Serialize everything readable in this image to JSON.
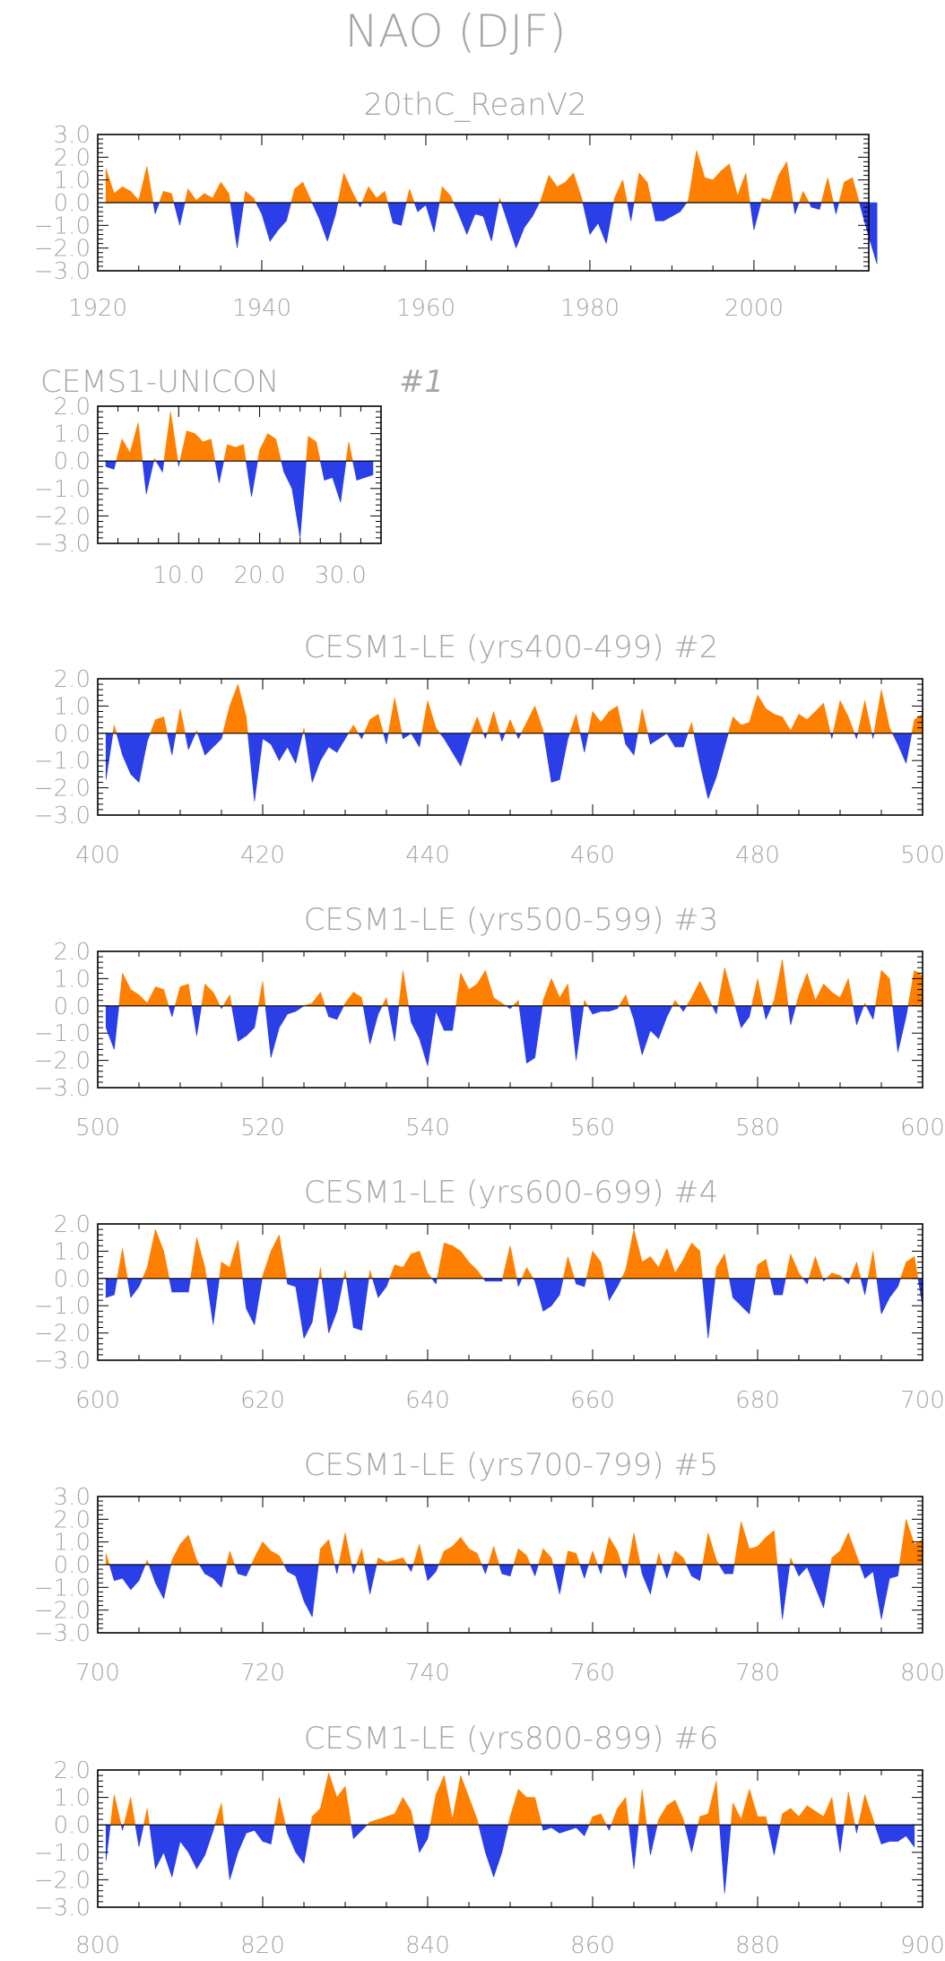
{
  "title": "NAO (DJF)",
  "colors": {
    "positive": "#ff8000",
    "negative": "#2b3fe8",
    "text": "#a6a6a6",
    "axis": "#000000"
  },
  "chart_data": [
    {
      "type": "area",
      "title": "20thC_ReanV2",
      "label": "",
      "x_start": 1920,
      "x_range": [
        1920,
        2014
      ],
      "ylim": [
        -3.0,
        3.0
      ],
      "yticks": [
        3.0,
        2.0,
        1.0,
        0.0,
        -1.0,
        -2.0,
        -3.0
      ],
      "xticks": [
        1920,
        1940,
        1960,
        1980,
        2000
      ],
      "xtick_labels": [
        "1920",
        "1940",
        "1960",
        "1980",
        "2000"
      ],
      "values": [
        1.5,
        0.4,
        0.7,
        0.5,
        0.1,
        1.6,
        -0.5,
        0.5,
        0.4,
        -1.0,
        0.6,
        0.1,
        0.4,
        0.2,
        0.9,
        0.4,
        -2.0,
        0.5,
        0.2,
        -0.5,
        -1.7,
        -1.2,
        -0.8,
        0.6,
        0.9,
        0.1,
        -0.7,
        -1.7,
        -0.5,
        1.3,
        0.5,
        -0.2,
        0.7,
        0.2,
        0.5,
        -0.9,
        -1.0,
        0.6,
        -0.4,
        -0.1,
        -1.3,
        0.7,
        0.3,
        -0.5,
        -1.4,
        -0.5,
        -0.6,
        -1.7,
        0.2,
        -0.9,
        -2.0,
        -1.1,
        -0.6,
        0.1,
        1.2,
        0.7,
        0.9,
        1.3,
        0.2,
        -1.4,
        -0.9,
        -1.8,
        0.2,
        1.0,
        -0.8,
        1.3,
        0.9,
        -0.8,
        -0.8,
        -0.6,
        -0.4,
        0.1,
        2.3,
        1.1,
        1.0,
        1.4,
        1.7,
        0.3,
        1.3,
        -1.2,
        0.2,
        0.1,
        1.2,
        1.8,
        -0.5,
        0.5,
        -0.2,
        -0.3,
        1.1,
        -0.5,
        0.9,
        1.1,
        -0.2,
        -1.5,
        -2.7
      ]
    },
    {
      "type": "area",
      "title": "CEMS1-UNICON",
      "label": "#1",
      "x_start": 0,
      "x_range": [
        0,
        35
      ],
      "ylim": [
        -3.0,
        2.0
      ],
      "yticks": [
        2.0,
        1.0,
        0.0,
        -1.0,
        -2.0,
        -3.0
      ],
      "xticks": [
        10,
        20,
        30
      ],
      "xtick_labels": [
        "10.0",
        "20.0",
        "30.0"
      ],
      "values": [
        -0.2,
        -0.3,
        0.8,
        0.3,
        1.4,
        -1.2,
        0.1,
        -0.4,
        1.8,
        -0.2,
        1.1,
        1.0,
        0.7,
        0.8,
        -0.8,
        0.6,
        0.5,
        0.6,
        -1.3,
        0.4,
        1.0,
        0.8,
        -0.4,
        -1.0,
        -2.8,
        0.9,
        0.7,
        -0.7,
        -0.6,
        -1.5,
        0.7,
        -0.7,
        -0.6,
        -0.5
      ]
    },
    {
      "type": "area",
      "title": "CESM1-LE (yrs400-499) #2",
      "label": "",
      "x_start": 400,
      "x_range": [
        400,
        500
      ],
      "ylim": [
        -3.0,
        2.0
      ],
      "yticks": [
        2.0,
        1.0,
        0.0,
        -1.0,
        -2.0,
        -3.0
      ],
      "xticks": [
        400,
        420,
        440,
        460,
        480,
        500
      ],
      "xtick_labels": [
        "400",
        "420",
        "440",
        "460",
        "480",
        "500"
      ],
      "values": [
        -1.7,
        0.3,
        -0.8,
        -1.5,
        -1.8,
        -0.3,
        0.5,
        0.6,
        -0.8,
        0.9,
        -0.6,
        0.1,
        -0.8,
        -0.5,
        -0.2,
        1.0,
        1.8,
        0.6,
        -2.5,
        -0.2,
        -0.4,
        -1.0,
        -0.5,
        -1.1,
        0.2,
        -1.8,
        -1.0,
        -0.5,
        -0.7,
        -0.2,
        0.3,
        -0.2,
        0.5,
        0.7,
        -0.4,
        1.3,
        -0.2,
        0.0,
        -0.5,
        1.2,
        0.2,
        -0.2,
        -0.7,
        -1.2,
        -0.2,
        0.6,
        -0.2,
        0.8,
        -0.3,
        0.5,
        -0.2,
        0.4,
        1.0,
        0.1,
        -1.8,
        -1.7,
        -0.2,
        0.7,
        -0.7,
        0.8,
        0.4,
        0.8,
        1.0,
        -0.4,
        -0.8,
        0.9,
        -0.4,
        -0.2,
        0.0,
        -0.5,
        -0.5,
        0.4,
        -1.1,
        -2.4,
        -1.6,
        -0.5,
        0.6,
        0.3,
        0.4,
        1.4,
        0.9,
        0.7,
        0.6,
        0.1,
        0.7,
        0.5,
        0.8,
        1.1,
        -0.2,
        1.2,
        0.6,
        -0.2,
        1.2,
        -0.2,
        1.6,
        0.2,
        -0.4,
        -1.1,
        0.5,
        0.7
      ]
    },
    {
      "type": "area",
      "title": "CESM1-LE (yrs500-599) #3",
      "label": "",
      "x_start": 500,
      "x_range": [
        500,
        600
      ],
      "ylim": [
        -3.0,
        2.0
      ],
      "yticks": [
        2.0,
        1.0,
        0.0,
        -1.0,
        -2.0,
        -3.0
      ],
      "xticks": [
        500,
        520,
        540,
        560,
        580,
        600
      ],
      "xtick_labels": [
        "500",
        "520",
        "540",
        "560",
        "580",
        "600"
      ],
      "values": [
        -0.8,
        -1.6,
        1.2,
        0.6,
        0.4,
        0.1,
        0.7,
        0.6,
        -0.4,
        0.7,
        0.8,
        -1.1,
        0.8,
        0.5,
        -0.1,
        0.4,
        -1.3,
        -1.1,
        -0.8,
        0.9,
        -1.9,
        -0.8,
        -0.3,
        -0.2,
        0.0,
        0.1,
        0.5,
        -0.4,
        -0.5,
        0.1,
        0.5,
        0.3,
        -1.4,
        -0.3,
        0.3,
        -1.3,
        1.3,
        -0.6,
        -1.2,
        -2.2,
        -0.2,
        -0.9,
        -0.9,
        1.2,
        0.6,
        0.8,
        1.3,
        0.3,
        0.1,
        -0.1,
        0.2,
        -2.1,
        -1.9,
        0.2,
        1.0,
        0.3,
        0.8,
        -2.0,
        0.2,
        -0.3,
        -0.2,
        -0.2,
        -0.1,
        0.4,
        -0.5,
        -1.8,
        -0.9,
        -1.2,
        -0.4,
        0.2,
        -0.2,
        0.3,
        0.9,
        0.3,
        -0.3,
        1.4,
        0.3,
        -0.8,
        -0.4,
        1.0,
        -0.5,
        0.2,
        1.7,
        -0.7,
        0.4,
        1.2,
        0.2,
        0.8,
        0.5,
        0.3,
        1.0,
        -0.7,
        0.1,
        -0.5,
        1.3,
        1.0,
        -1.7,
        -0.4,
        1.3,
        1.1
      ]
    },
    {
      "type": "area",
      "title": "CESM1-LE (yrs600-699) #4",
      "label": "",
      "x_start": 600,
      "x_range": [
        600,
        700
      ],
      "ylim": [
        -3.0,
        2.0
      ],
      "yticks": [
        2.0,
        1.0,
        0.0,
        -1.0,
        -2.0,
        -3.0
      ],
      "xticks": [
        600,
        620,
        640,
        660,
        680,
        700
      ],
      "xtick_labels": [
        "600",
        "620",
        "640",
        "660",
        "680",
        "700"
      ],
      "values": [
        -0.7,
        -0.6,
        1.1,
        -0.7,
        -0.3,
        0.4,
        1.8,
        1.0,
        -0.5,
        -0.5,
        -0.5,
        1.5,
        0.4,
        -1.7,
        0.6,
        0.4,
        1.4,
        -1.1,
        -1.7,
        0.1,
        1.0,
        1.6,
        -0.2,
        -0.3,
        -2.2,
        -1.6,
        0.4,
        -2.0,
        -1.2,
        0.3,
        -1.8,
        -1.9,
        0.3,
        -0.7,
        -0.3,
        0.5,
        0.4,
        0.9,
        1.0,
        0.2,
        -0.2,
        1.3,
        1.2,
        1.0,
        0.6,
        0.3,
        -0.1,
        -0.1,
        -0.1,
        1.2,
        -0.3,
        0.4,
        -0.1,
        -1.2,
        -1.0,
        -0.6,
        0.8,
        -0.2,
        -0.3,
        1.0,
        0.6,
        -0.8,
        -0.3,
        0.3,
        1.8,
        0.6,
        0.8,
        0.4,
        1.1,
        0.2,
        0.7,
        1.3,
        1.0,
        -2.2,
        0.4,
        0.9,
        -0.7,
        -1.0,
        -1.3,
        0.5,
        0.7,
        -0.6,
        -0.6,
        0.9,
        0.2,
        -0.2,
        0.8,
        -0.1,
        0.2,
        0.1,
        -0.2,
        0.6,
        -0.6,
        1.0,
        -1.3,
        -0.7,
        -0.3,
        0.6,
        0.8,
        -1.0
      ]
    },
    {
      "type": "area",
      "title": "CESM1-LE (yrs700-799) #5",
      "label": "",
      "x_start": 700,
      "x_range": [
        700,
        800
      ],
      "ylim": [
        -3.0,
        3.0
      ],
      "yticks": [
        3.0,
        2.0,
        1.0,
        0.0,
        -1.0,
        -2.0,
        -3.0
      ],
      "xticks": [
        700,
        720,
        740,
        760,
        780,
        800
      ],
      "xtick_labels": [
        "700",
        "720",
        "740",
        "760",
        "780",
        "800"
      ],
      "values": [
        0.5,
        -0.7,
        -0.6,
        -1.1,
        -0.7,
        0.2,
        -0.8,
        -1.5,
        0.2,
        0.9,
        1.3,
        0.2,
        -0.4,
        -0.6,
        -1.0,
        0.6,
        -0.4,
        -0.5,
        0.3,
        1.0,
        0.6,
        0.4,
        -0.3,
        -0.5,
        -1.6,
        -2.3,
        0.7,
        1.1,
        -0.4,
        1.4,
        -0.4,
        0.7,
        -1.3,
        0.3,
        0.1,
        0.2,
        0.3,
        -0.3,
        0.9,
        -0.7,
        -0.3,
        0.6,
        0.8,
        1.2,
        0.7,
        0.5,
        -0.4,
        0.8,
        -0.4,
        -0.5,
        0.7,
        0.4,
        -0.5,
        0.7,
        0.3,
        -1.3,
        0.6,
        0.5,
        -0.6,
        0.6,
        -0.4,
        1.2,
        0.6,
        -0.6,
        1.4,
        -0.4,
        -1.3,
        0.5,
        -0.6,
        0.6,
        0.3,
        -0.5,
        -0.7,
        1.4,
        0.2,
        -0.4,
        -0.4,
        1.9,
        0.7,
        0.8,
        1.2,
        1.5,
        -2.4,
        0.3,
        -0.5,
        -0.1,
        -1.0,
        -1.9,
        0.3,
        0.6,
        1.4,
        0.4,
        -0.6,
        -0.3,
        -2.4,
        -0.6,
        -0.5,
        2.0,
        0.9,
        1.1
      ]
    },
    {
      "type": "area",
      "title": "CESM1-LE (yrs800-899) #6",
      "label": "",
      "x_start": 800,
      "x_range": [
        800,
        900
      ],
      "ylim": [
        -3.0,
        2.0
      ],
      "yticks": [
        2.0,
        1.0,
        0.0,
        -1.0,
        -2.0,
        -3.0
      ],
      "xticks": [
        800,
        820,
        840,
        860,
        880,
        900
      ],
      "xtick_labels": [
        "800",
        "820",
        "840",
        "860",
        "880",
        "900"
      ],
      "values": [
        -1.3,
        1.1,
        -0.2,
        1.0,
        -0.8,
        0.6,
        -1.6,
        -1.0,
        -1.9,
        -0.6,
        -1.0,
        -1.6,
        -1.1,
        -0.2,
        0.8,
        -2.0,
        -1.0,
        -0.3,
        -0.2,
        -0.6,
        -0.7,
        1.0,
        -0.3,
        -1.0,
        -1.4,
        0.3,
        0.6,
        1.9,
        1.0,
        1.4,
        -0.5,
        -0.2,
        0.1,
        0.2,
        0.3,
        0.4,
        1.0,
        0.5,
        -1.0,
        -0.5,
        1.1,
        1.8,
        0.2,
        1.8,
        1.0,
        0.2,
        -1.0,
        -1.9,
        -1.0,
        0.3,
        1.3,
        1.0,
        1.0,
        -0.2,
        -0.1,
        -0.3,
        -0.2,
        -0.1,
        -0.4,
        0.3,
        0.4,
        -0.2,
        0.6,
        1.0,
        -1.6,
        1.3,
        -1.1,
        0.2,
        0.7,
        0.9,
        0.2,
        -1.0,
        0.3,
        0.4,
        1.6,
        -2.5,
        0.8,
        0.2,
        1.3,
        0.3,
        0.3,
        -1.1,
        0.4,
        0.6,
        0.3,
        0.7,
        0.5,
        0.3,
        1.0,
        -1.0,
        1.2,
        -0.3,
        1.1,
        0.2,
        -0.7,
        -0.6,
        -0.6,
        -0.4,
        -0.8
      ]
    }
  ]
}
